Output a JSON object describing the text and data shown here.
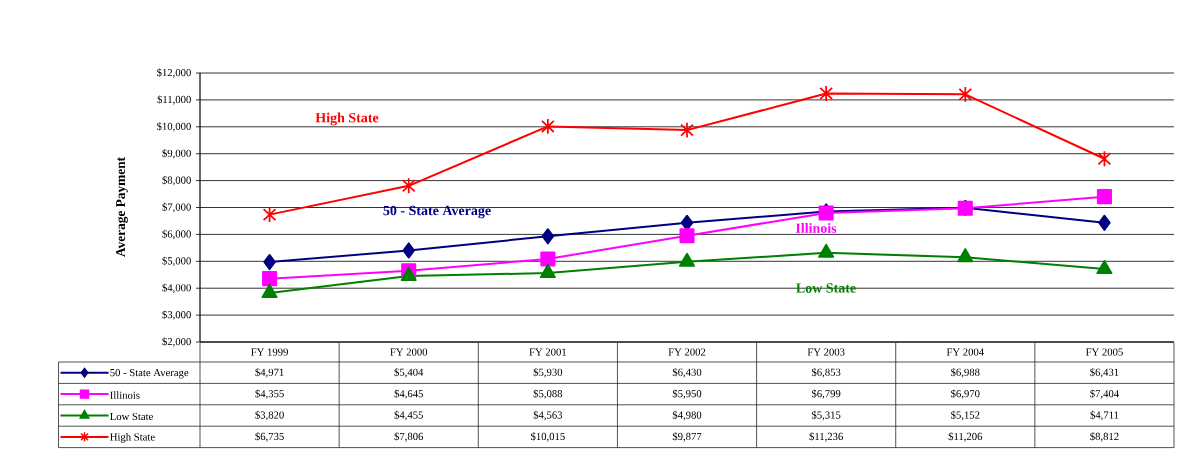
{
  "chart_data": {
    "type": "line",
    "ylabel": "Average Payment",
    "categories": [
      "FY 1999",
      "FY 2000",
      "FY 2001",
      "FY 2002",
      "FY 2003",
      "FY 2004",
      "FY 2005"
    ],
    "series": [
      {
        "name": "50 - State Average",
        "color": "#000080",
        "marker": "diamond",
        "values": [
          4971,
          5404,
          5930,
          6430,
          6853,
          6988,
          6431
        ],
        "value_labels": [
          "$4,971",
          "$5,404",
          "$5,930",
          "$6,430",
          "$6,853",
          "$6,988",
          "$6,431"
        ]
      },
      {
        "name": "Illinois",
        "color": "#ff00ff",
        "marker": "square",
        "values": [
          4355,
          4645,
          5088,
          5950,
          6799,
          6970,
          7404
        ],
        "value_labels": [
          "$4,355",
          "$4,645",
          "$5,088",
          "$5,950",
          "$6,799",
          "$6,970",
          "$7,404"
        ]
      },
      {
        "name": "Low State",
        "color": "#008000",
        "marker": "triangle",
        "values": [
          3820,
          4455,
          4563,
          4980,
          5315,
          5152,
          4711
        ],
        "value_labels": [
          "$3,820",
          "$4,455",
          "$4,563",
          "$4,980",
          "$5,315",
          "$5,152",
          "$4,711"
        ]
      },
      {
        "name": "High State",
        "color": "#ff0000",
        "marker": "cross",
        "values": [
          6735,
          7806,
          10015,
          9877,
          11236,
          11206,
          8812
        ],
        "value_labels": [
          "$6,735",
          "$7,806",
          "$10,015",
          "$9,877",
          "$11,236",
          "$11,206",
          "$8,812"
        ]
      }
    ],
    "ylim": [
      2000,
      12000
    ],
    "yticks": [
      {
        "value": 2000,
        "label": "$2,000"
      },
      {
        "value": 3000,
        "label": "$3,000"
      },
      {
        "value": 4000,
        "label": "$4,000"
      },
      {
        "value": 5000,
        "label": "$5,000"
      },
      {
        "value": 6000,
        "label": "$6,000"
      },
      {
        "value": 7000,
        "label": "$7,000"
      },
      {
        "value": 8000,
        "label": "$8,000"
      },
      {
        "value": 9000,
        "label": "$9,000"
      },
      {
        "value": 10000,
        "label": "$10,000"
      },
      {
        "value": 11000,
        "label": "$11,000"
      },
      {
        "value": 12000,
        "label": "$12,000"
      }
    ],
    "grid": "y",
    "legend": "bottom left"
  }
}
